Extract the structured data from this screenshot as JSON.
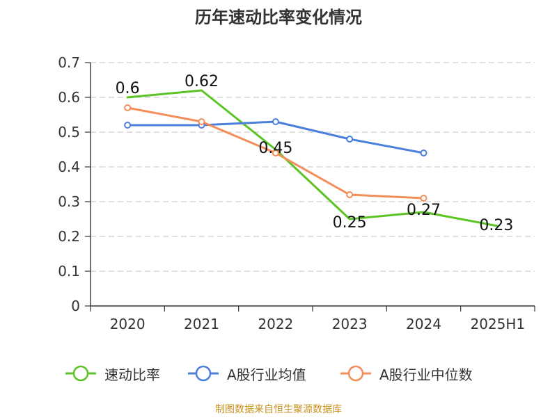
{
  "chart_data": {
    "type": "line",
    "title": "历年速动比率变化情况",
    "categories": [
      "2020",
      "2021",
      "2022",
      "2023",
      "2024",
      "2025H1"
    ],
    "ylim": [
      0,
      0.7
    ],
    "yticks": [
      0,
      0.1,
      0.2,
      0.3,
      0.4,
      0.5,
      0.6,
      0.7
    ],
    "ytick_labels": [
      "0",
      "0.1",
      "0.2",
      "0.3",
      "0.4",
      "0.5",
      "0.6",
      "0.7"
    ],
    "grid": true,
    "legend_position": "bottom",
    "source": "制图数据来自恒生聚源数据库",
    "series": [
      {
        "name": "速动比率",
        "color": "#5bc424",
        "values": [
          0.6,
          0.62,
          0.45,
          0.25,
          0.27,
          0.23
        ],
        "data_labels": [
          "0.6",
          "0.62",
          "0.45",
          "0.25",
          "0.27",
          "0.23"
        ],
        "show_markers": false
      },
      {
        "name": "A股行业均值",
        "color": "#4a7fdc",
        "values": [
          0.52,
          0.52,
          0.53,
          0.48,
          0.44,
          null
        ],
        "show_markers": true
      },
      {
        "name": "A股行业中位数",
        "color": "#f58d59",
        "values": [
          0.57,
          0.53,
          0.44,
          0.32,
          0.31,
          null
        ],
        "show_markers": true
      }
    ]
  }
}
